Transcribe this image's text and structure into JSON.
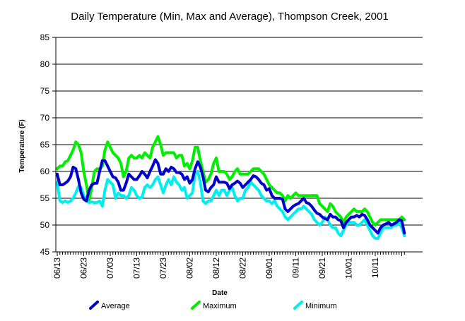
{
  "chart_data": {
    "type": "line",
    "title": "Daily Temperature (Min, Max and Average), Thompson Creek, 2001",
    "xlabel": "Date",
    "ylabel": "Temperature (F)",
    "ylim": [
      45,
      85
    ],
    "y_ticks": [
      45,
      50,
      55,
      60,
      65,
      70,
      75,
      80,
      85
    ],
    "grid": "horizontal",
    "legend_position": "bottom",
    "start_date": "2001-06-13",
    "x_tick_labels": [
      "06/13",
      "06/23",
      "07/03",
      "07/13",
      "07/23",
      "08/02",
      "08/12",
      "08/22",
      "09/01",
      "09/11",
      "09/21",
      "10/01",
      "10/11"
    ],
    "series": [
      {
        "name": "Average",
        "color": "#0000cc",
        "values": [
          59.5,
          57.5,
          57.5,
          57.8,
          58.2,
          59.0,
          60.8,
          60.5,
          58.5,
          56.0,
          54.8,
          54.5,
          56.5,
          57.5,
          57.8,
          57.8,
          60.0,
          62.0,
          62.0,
          61.0,
          60.0,
          59.0,
          58.8,
          58.0,
          56.5,
          56.5,
          57.8,
          59.5,
          59.0,
          58.5,
          58.5,
          59.2,
          60.0,
          59.5,
          58.8,
          60.0,
          61.0,
          62.2,
          61.5,
          59.5,
          59.5,
          60.5,
          60.0,
          60.8,
          60.5,
          59.8,
          59.8,
          59.5,
          58.5,
          59.0,
          57.8,
          58.5,
          60.5,
          61.8,
          60.8,
          59.0,
          56.5,
          56.2,
          57.0,
          57.5,
          59.0,
          58.0,
          58.0,
          58.0,
          57.8,
          56.8,
          57.5,
          57.8,
          58.2,
          57.8,
          57.0,
          57.5,
          58.0,
          58.5,
          59.2,
          59.0,
          58.5,
          57.8,
          57.5,
          56.5,
          56.8,
          55.5,
          55.0,
          55.0,
          55.0,
          54.8,
          53.0,
          52.5,
          53.0,
          53.5,
          53.8,
          54.0,
          54.5,
          55.0,
          54.2,
          54.0,
          53.5,
          52.8,
          52.2,
          52.0,
          51.5,
          51.2,
          51.0,
          52.0,
          51.5,
          51.5,
          51.0,
          50.8,
          49.5,
          50.5,
          51.0,
          51.5,
          51.5,
          51.8,
          51.5,
          52.0,
          51.8,
          51.0,
          50.0,
          49.5,
          49.0,
          48.5,
          49.5,
          50.0,
          50.2,
          50.5,
          50.0,
          50.2,
          50.5,
          51.0,
          50.8,
          48.5
        ]
      },
      {
        "name": "Maximum",
        "color": "#00ee00",
        "values": [
          60.5,
          61.0,
          61.0,
          61.8,
          62.0,
          63.0,
          64.0,
          65.5,
          65.0,
          63.5,
          60.0,
          57.5,
          54.5,
          57.0,
          60.0,
          60.5,
          60.5,
          61.0,
          64.0,
          65.5,
          64.5,
          63.5,
          63.0,
          62.5,
          61.5,
          59.0,
          60.0,
          62.5,
          63.0,
          62.5,
          62.5,
          63.0,
          62.5,
          63.5,
          63.0,
          62.5,
          64.5,
          65.5,
          66.5,
          65.0,
          63.0,
          63.5,
          63.5,
          63.5,
          63.5,
          62.5,
          63.0,
          63.0,
          61.0,
          61.5,
          60.5,
          62.0,
          64.5,
          64.5,
          62.0,
          60.0,
          58.0,
          58.5,
          59.5,
          61.5,
          62.5,
          60.0,
          60.0,
          60.0,
          59.5,
          58.5,
          59.0,
          60.0,
          60.5,
          59.5,
          59.5,
          59.5,
          59.5,
          60.0,
          60.5,
          60.5,
          60.5,
          60.0,
          59.5,
          58.5,
          57.5,
          57.0,
          56.5,
          56.0,
          56.0,
          55.5,
          54.5,
          55.5,
          55.0,
          55.5,
          56.0,
          55.5,
          55.5,
          55.5,
          55.5,
          55.5,
          55.5,
          55.5,
          55.5,
          54.0,
          53.5,
          53.0,
          52.5,
          54.0,
          53.5,
          52.5,
          52.0,
          51.5,
          50.5,
          51.5,
          52.0,
          52.5,
          53.0,
          52.5,
          52.5,
          52.5,
          53.0,
          52.5,
          51.5,
          50.5,
          50.0,
          50.5,
          51.0,
          51.0,
          51.0,
          51.0,
          51.0,
          51.0,
          51.0,
          51.0,
          51.5,
          51.0
        ]
      },
      {
        "name": "Minimum",
        "color": "#00eeee",
        "values": [
          58.0,
          54.5,
          54.2,
          54.5,
          54.2,
          54.5,
          55.0,
          56.0,
          57.2,
          57.0,
          55.5,
          54.5,
          54.2,
          54.3,
          54.2,
          54.2,
          54.5,
          53.5,
          56.5,
          58.5,
          58.0,
          57.5,
          55.0,
          56.0,
          55.5,
          55.5,
          55.0,
          55.5,
          57.0,
          56.5,
          55.5,
          55.0,
          55.2,
          57.0,
          57.5,
          57.0,
          57.5,
          58.5,
          59.0,
          57.5,
          56.0,
          57.5,
          58.5,
          57.5,
          59.0,
          58.0,
          57.5,
          56.5,
          57.0,
          55.0,
          55.5,
          56.0,
          59.5,
          60.0,
          58.0,
          54.5,
          54.0,
          54.5,
          54.5,
          55.5,
          56.5,
          55.5,
          56.5,
          56.5,
          55.5,
          56.5,
          57.0,
          55.5,
          54.5,
          55.0,
          55.0,
          56.5,
          57.0,
          58.0,
          57.5,
          57.0,
          56.5,
          55.5,
          55.0,
          54.5,
          54.5,
          54.0,
          54.5,
          53.5,
          53.0,
          52.5,
          51.5,
          51.0,
          51.5,
          52.0,
          52.5,
          53.0,
          53.0,
          53.5,
          53.0,
          52.5,
          52.0,
          51.0,
          50.5,
          50.0,
          50.5,
          51.5,
          51.0,
          50.0,
          49.5,
          49.5,
          48.5,
          48.0,
          49.0,
          50.0,
          50.5,
          50.5,
          50.5,
          50.0,
          50.0,
          50.5,
          51.0,
          50.0,
          49.0,
          48.0,
          47.5,
          47.5,
          48.5,
          49.5,
          49.5,
          49.5,
          49.5,
          50.0,
          50.0,
          50.5,
          49.5,
          48.0
        ]
      }
    ]
  }
}
